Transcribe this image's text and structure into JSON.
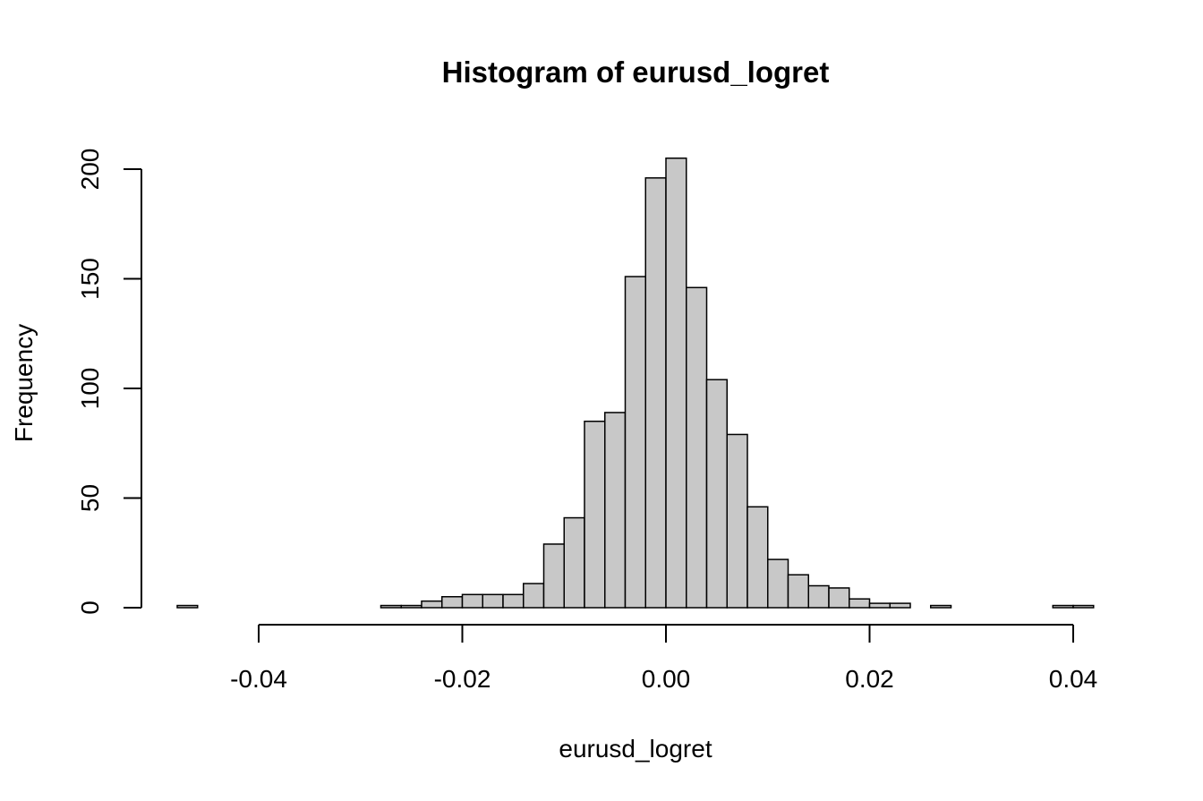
{
  "chart_data": {
    "type": "bar",
    "title": "Histogram of eurusd_logret",
    "xlabel": "eurusd_logret",
    "ylabel": "Frequency",
    "bin_width": 0.002,
    "bins_start": [
      -0.048,
      -0.046,
      -0.044,
      -0.042,
      -0.04,
      -0.038,
      -0.036,
      -0.034,
      -0.032,
      -0.03,
      -0.028,
      -0.026,
      -0.024,
      -0.022,
      -0.02,
      -0.018,
      -0.016,
      -0.014,
      -0.012,
      -0.01,
      -0.008,
      -0.006,
      -0.004,
      -0.002,
      0.0,
      0.002,
      0.004,
      0.006,
      0.008,
      0.01,
      0.012,
      0.014,
      0.016,
      0.018,
      0.02,
      0.022,
      0.024,
      0.026,
      0.028,
      0.03,
      0.032,
      0.034,
      0.036,
      0.038,
      0.04
    ],
    "values": [
      1,
      0,
      0,
      0,
      0,
      0,
      0,
      0,
      0,
      0,
      1,
      1,
      3,
      5,
      6,
      6,
      6,
      11,
      29,
      41,
      85,
      89,
      151,
      196,
      205,
      146,
      104,
      79,
      46,
      22,
      15,
      10,
      9,
      4,
      2,
      2,
      0,
      1,
      0,
      0,
      0,
      0,
      0,
      1,
      1
    ],
    "xlim": [
      -0.048,
      0.042
    ],
    "ylim": [
      0,
      205
    ],
    "xticks": [
      -0.04,
      -0.02,
      0.0,
      0.02,
      0.04
    ],
    "xtick_labels": [
      "-0.04",
      "-0.02",
      "0.00",
      "0.02",
      "0.04"
    ],
    "yticks": [
      0,
      50,
      100,
      150,
      200
    ],
    "ytick_labels": [
      "0",
      "50",
      "100",
      "150",
      "200"
    ],
    "bar_fill": "#c8c8c8",
    "bar_stroke": "#000000",
    "grid": false
  }
}
